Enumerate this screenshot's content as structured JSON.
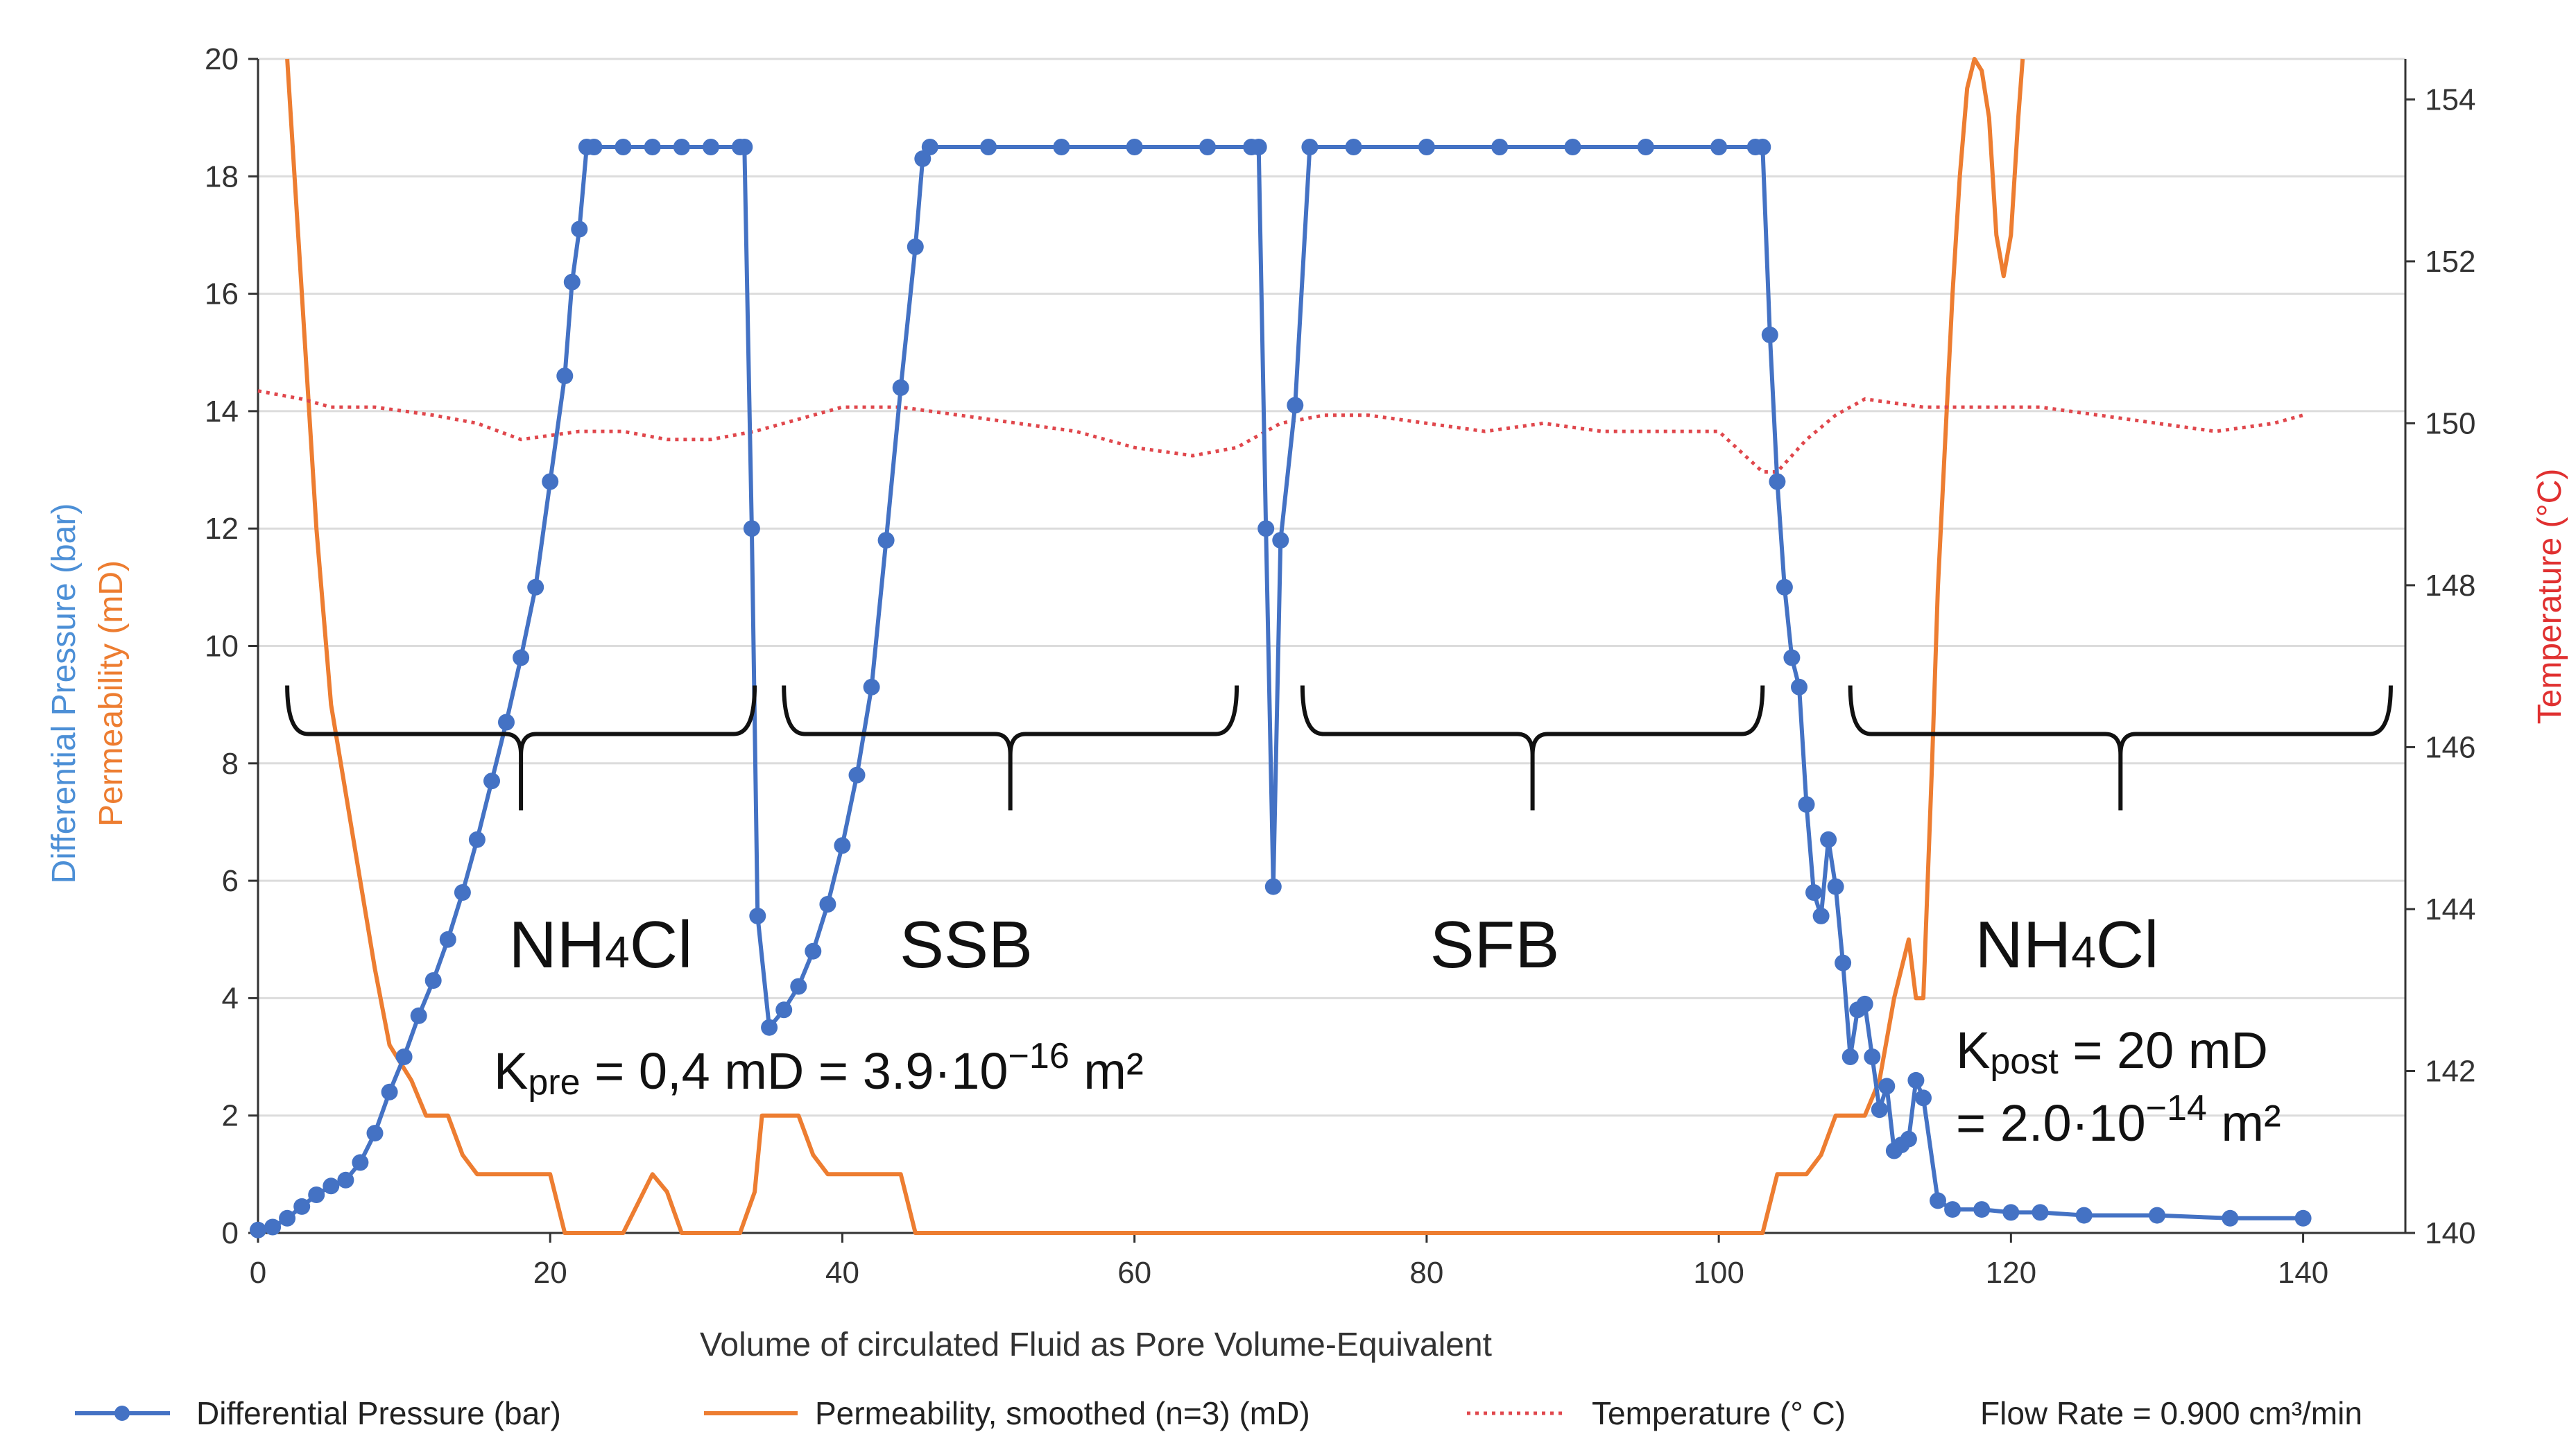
{
  "chart_data": {
    "type": "line",
    "title": "",
    "xlabel": "Volume of circulated Fluid as Pore Volume-Equivalent",
    "ylabel_left_1": "Differential Pressure (bar)",
    "ylabel_left_2": "Permeability (mD)",
    "ylabel_right": "Temperature (°C)",
    "xlim": [
      0,
      147
    ],
    "ylim": [
      0,
      20
    ],
    "y2lim": [
      140,
      154.5
    ],
    "x_ticks": [
      0,
      20,
      40,
      60,
      80,
      100,
      120,
      140
    ],
    "y_ticks": [
      0,
      2,
      4,
      6,
      8,
      10,
      12,
      14,
      16,
      18,
      20
    ],
    "y2_ticks": [
      140,
      142,
      144,
      146,
      148,
      150,
      152,
      154
    ],
    "grid": "horizontal",
    "legend_position": "bottom",
    "legend": [
      {
        "key": "dp",
        "label": "Differential Pressure (bar)"
      },
      {
        "key": "perm",
        "label": "Permeability, smoothed (n=3) (mD)"
      },
      {
        "key": "temp",
        "label": "Temperature (° C)"
      }
    ],
    "flow_rate_note": "Flow Rate = 0.900 cm³/min",
    "series": [
      {
        "name": "Differential Pressure (bar)",
        "key": "dp",
        "color": "#4472C4",
        "axis": "left",
        "style": "line-markers",
        "x": [
          0,
          1,
          2,
          3,
          4,
          5,
          6,
          7,
          8,
          9,
          10,
          11,
          12,
          13,
          14,
          15,
          16,
          17,
          18,
          19,
          20,
          21,
          21.5,
          22,
          22.5,
          23,
          25,
          27,
          29,
          31,
          33,
          33.3,
          33.8,
          34.2,
          35,
          36,
          37,
          38,
          39,
          40,
          41,
          42,
          43,
          44,
          45,
          45.5,
          46,
          50,
          55,
          60,
          65,
          68,
          68.5,
          69,
          69.5,
          70,
          71,
          72,
          75,
          80,
          85,
          90,
          95,
          100,
          102.5,
          103,
          103.5,
          104,
          104.5,
          105,
          105.5,
          106,
          106.5,
          107,
          107.5,
          108,
          108.5,
          109,
          109.5,
          110,
          110.5,
          111,
          111.5,
          112,
          112.5,
          113,
          113.5,
          114,
          115,
          116,
          118,
          120,
          122,
          125,
          130,
          135,
          140
        ],
        "values": [
          0.05,
          0.1,
          0.25,
          0.45,
          0.65,
          0.8,
          0.9,
          1.2,
          1.7,
          2.4,
          3.0,
          3.7,
          4.3,
          5.0,
          5.8,
          6.7,
          7.7,
          8.7,
          9.8,
          11.0,
          12.8,
          14.6,
          16.2,
          17.1,
          18.5,
          18.5,
          18.5,
          18.5,
          18.5,
          18.5,
          18.5,
          18.5,
          12.0,
          5.4,
          3.5,
          3.8,
          4.2,
          4.8,
          5.6,
          6.6,
          7.8,
          9.3,
          11.8,
          14.4,
          16.8,
          18.3,
          18.5,
          18.5,
          18.5,
          18.5,
          18.5,
          18.5,
          18.5,
          12.0,
          5.9,
          11.8,
          14.1,
          18.5,
          18.5,
          18.5,
          18.5,
          18.5,
          18.5,
          18.5,
          18.5,
          18.5,
          15.3,
          12.8,
          11.0,
          9.8,
          9.3,
          7.3,
          5.8,
          5.4,
          6.7,
          5.9,
          4.6,
          3.0,
          3.8,
          3.9,
          3.0,
          2.1,
          2.5,
          1.4,
          1.5,
          1.6,
          2.6,
          2.3,
          0.55,
          0.4,
          0.4,
          0.35,
          0.35,
          0.3,
          0.3,
          0.25,
          0.25
        ]
      },
      {
        "name": "Permeability, smoothed (n=3) (mD)",
        "key": "perm",
        "color": "#ED7D31",
        "axis": "left",
        "style": "line",
        "x": [
          2,
          3,
          4,
          5,
          6,
          7,
          8,
          9,
          9.5,
          10.5,
          11.5,
          12,
          13,
          14,
          15,
          16,
          17,
          18,
          20,
          21,
          25,
          26,
          27,
          28,
          29,
          33,
          34,
          34.5,
          35,
          37,
          38,
          39,
          40,
          41,
          42,
          43,
          44,
          45,
          50,
          60,
          70,
          80,
          90,
          100,
          103,
          104,
          105,
          106,
          107,
          108,
          109,
          110,
          111,
          112,
          113,
          113.5,
          114,
          114.3,
          114.6,
          115,
          116,
          116.5,
          117,
          117.5,
          118,
          118.5,
          119,
          119.5,
          120,
          120.5,
          120.8
        ],
        "values": [
          20,
          16,
          12,
          9,
          7.5,
          6,
          4.5,
          3.2,
          3.0,
          2.6,
          2.0,
          2.0,
          2.0,
          1.33,
          1.0,
          1.0,
          1.0,
          1.0,
          1.0,
          0,
          0,
          0.5,
          1.0,
          0.7,
          0,
          0,
          0.7,
          2.0,
          2.0,
          2.0,
          1.33,
          1.0,
          1.0,
          1.0,
          1.0,
          1.0,
          1.0,
          0,
          0,
          0,
          0,
          0,
          0,
          0,
          0,
          1.0,
          1.0,
          1.0,
          1.33,
          2.0,
          2.0,
          2.0,
          2.6,
          4.0,
          5.0,
          4.0,
          4.0,
          6.0,
          8.0,
          11.0,
          16.0,
          18.0,
          19.5,
          20,
          19.8,
          19.0,
          17.0,
          16.3,
          17.0,
          19.0,
          20
        ]
      },
      {
        "name": "Temperature (° C)",
        "key": "temp",
        "color": "#E0474C",
        "axis": "right",
        "style": "dotted",
        "x": [
          0,
          3,
          5,
          8,
          12,
          15,
          18,
          22,
          25,
          28,
          31,
          34,
          36,
          40,
          44,
          48,
          52,
          56,
          60,
          64,
          67,
          70,
          73,
          76,
          80,
          84,
          88,
          92,
          96,
          100,
          103,
          104,
          106,
          108,
          110,
          114,
          118,
          122,
          126,
          130,
          134,
          138,
          140
        ],
        "values": [
          150.4,
          150.3,
          150.2,
          150.2,
          150.1,
          150.0,
          149.8,
          149.9,
          149.9,
          149.8,
          149.8,
          149.9,
          150.0,
          150.2,
          150.2,
          150.1,
          150.0,
          149.9,
          149.7,
          149.6,
          149.7,
          150.0,
          150.1,
          150.1,
          150.0,
          149.9,
          150.0,
          149.9,
          149.9,
          149.9,
          149.4,
          149.4,
          149.8,
          150.1,
          150.3,
          150.2,
          150.2,
          150.2,
          150.1,
          150.0,
          149.9,
          150.0,
          150.1
        ]
      }
    ],
    "phases": [
      {
        "label": "NH4Cl",
        "main": "NH",
        "sub": "4",
        "rest": "Cl",
        "x_start": 2,
        "x_end": 34
      },
      {
        "label": "SSB",
        "main": "SSB",
        "sub": "",
        "rest": "",
        "x_start": 36,
        "x_end": 67
      },
      {
        "label": "SFB",
        "main": "SFB",
        "sub": "",
        "rest": "",
        "x_start": 71.5,
        "x_end": 103
      },
      {
        "label": "NH4Cl",
        "main": "NH",
        "sub": "4",
        "rest": "Cl",
        "x_start": 109,
        "x_end": 146
      }
    ],
    "bracket_y": 8.5,
    "annotations": {
      "kpre": {
        "k": "K",
        "sub": "pre",
        "text": " = 0,4 mD = 3.9·10",
        "sup": "−16",
        "unit": " m²"
      },
      "kpost_line1": {
        "k": "K",
        "sub": "post",
        "text": " = 20 mD"
      },
      "kpost_line2": {
        "text": "= 2.0·10",
        "sup": "−14",
        "unit": " m²"
      }
    }
  }
}
